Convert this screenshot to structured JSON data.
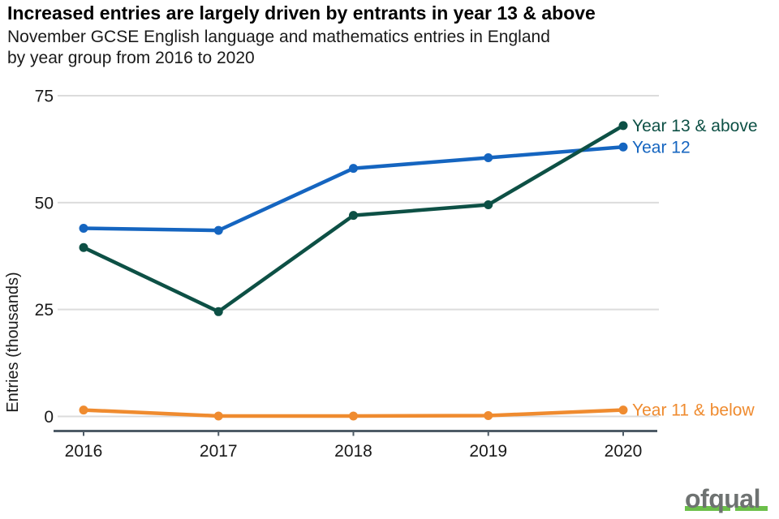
{
  "title": "Increased entries are largely driven by entrants in year 13 & above",
  "subtitle": "November GCSE English language and mathematics entries in England\nby year group from 2016 to 2020",
  "logo": {
    "text": "ofqual",
    "text_color": "#6e7271",
    "underline_color": "#6cbf4a"
  },
  "chart_data": {
    "type": "line",
    "x": [
      "2016",
      "2017",
      "2018",
      "2019",
      "2020"
    ],
    "series": [
      {
        "name": "Year 13 & above",
        "color": "#0d5045",
        "values": [
          39.5,
          24.5,
          47,
          49.5,
          68
        ]
      },
      {
        "name": "Year 12",
        "color": "#1565c0",
        "values": [
          44,
          43.5,
          58,
          60.5,
          63
        ]
      },
      {
        "name": "Year 11 & below",
        "color": "#ef8b2f",
        "values": [
          1.5,
          0.1,
          0.1,
          0.2,
          1.5
        ]
      }
    ],
    "title": "Increased entries are largely driven by entrants in year 13 & above",
    "xlabel": "",
    "ylabel": "Entries (thousands)",
    "yticks": [
      0,
      25,
      50,
      75
    ],
    "ylim": [
      0,
      75
    ],
    "grid": true,
    "gridline_color": "#dcdcdc",
    "axis_line_color": "#4e5b66",
    "tick_label_color": "#1a1a1a",
    "legend_position": "line-end-labels"
  }
}
